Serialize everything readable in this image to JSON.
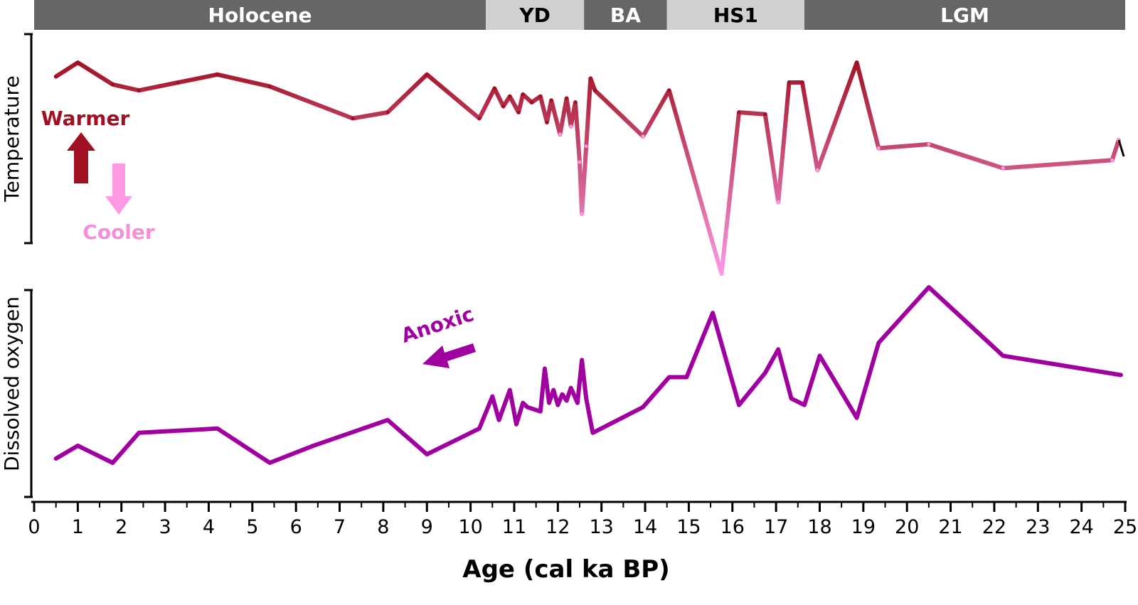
{
  "chart_data": {
    "type": "line",
    "xlabel": "Age (cal ka BP)",
    "xlim": [
      0,
      25
    ],
    "x_ticks": [
      "0",
      "1",
      "2",
      "3",
      "4",
      "5",
      "6",
      "7",
      "8",
      "9",
      "10",
      "11",
      "12",
      "13",
      "14",
      "15",
      "16",
      "17",
      "18",
      "19",
      "20",
      "21",
      "22",
      "23",
      "24",
      "25"
    ],
    "periods": [
      {
        "label": "Holocene",
        "start": 0.0,
        "end": 10.35,
        "fill": "#666666",
        "text_color": "#ffffff"
      },
      {
        "label": "YD",
        "start": 10.35,
        "end": 12.6,
        "fill": "#d0d0d0",
        "text_color": "#000000"
      },
      {
        "label": "BA",
        "start": 12.6,
        "end": 14.5,
        "fill": "#666666",
        "text_color": "#ffffff"
      },
      {
        "label": "HS1",
        "start": 14.5,
        "end": 17.65,
        "fill": "#d0d0d0",
        "text_color": "#000000"
      },
      {
        "label": "LGM",
        "start": 17.65,
        "end": 25.0,
        "fill": "#666666",
        "text_color": "#ffffff"
      }
    ],
    "panels": [
      {
        "ylabel": "Temperature",
        "color_warm": "#a01020",
        "color_cool": "#ff99e6",
        "annotations": [
          {
            "label": "Warmer",
            "color": "#a01020",
            "direction": "up"
          },
          {
            "label": "Cooler",
            "color": "#f58fd8",
            "direction": "down"
          }
        ],
        "series": [
          {
            "x": [
              0.5,
              1.0,
              1.8,
              2.4,
              3.3,
              4.2,
              5.4,
              7.3,
              8.1,
              9.0,
              10.2,
              10.55,
              10.75,
              10.9,
              11.1,
              11.2,
              11.4,
              11.6,
              11.75,
              11.85,
              12.05,
              12.2,
              12.3,
              12.4,
              12.5,
              12.55,
              12.65,
              12.75,
              12.85,
              13.95,
              14.55,
              15.75,
              16.15,
              16.75,
              17.05,
              17.3,
              17.6,
              17.95,
              18.85,
              19.35,
              20.5,
              22.2,
              24.7,
              24.85
            ],
            "y": [
              0.85,
              0.92,
              0.81,
              0.78,
              0.82,
              0.86,
              0.8,
              0.64,
              0.67,
              0.86,
              0.64,
              0.79,
              0.7,
              0.75,
              0.67,
              0.76,
              0.72,
              0.75,
              0.62,
              0.73,
              0.56,
              0.74,
              0.6,
              0.72,
              0.42,
              0.16,
              0.5,
              0.84,
              0.78,
              0.55,
              0.78,
              -0.14,
              0.67,
              0.66,
              0.22,
              0.82,
              0.82,
              0.38,
              0.92,
              0.49,
              0.51,
              0.39,
              0.43,
              0.53
            ]
          }
        ]
      },
      {
        "ylabel": "Dissolved oxygen",
        "color": "#a000a0",
        "annotations": [
          {
            "label": "Anoxic",
            "color": "#a000a0",
            "direction": "left"
          }
        ],
        "series": [
          {
            "x": [
              0.5,
              1.0,
              1.8,
              2.4,
              4.2,
              5.4,
              6.4,
              8.1,
              9.0,
              10.2,
              10.5,
              10.65,
              10.9,
              11.05,
              11.2,
              11.3,
              11.6,
              11.7,
              11.8,
              11.9,
              12.0,
              12.1,
              12.2,
              12.3,
              12.45,
              12.55,
              12.65,
              12.8,
              13.95,
              14.55,
              14.95,
              15.55,
              16.15,
              16.75,
              17.05,
              17.35,
              17.65,
              18.0,
              18.85,
              19.35,
              20.5,
              22.2,
              24.9
            ],
            "y": [
              0.2,
              0.26,
              0.18,
              0.32,
              0.34,
              0.18,
              0.26,
              0.38,
              0.22,
              0.34,
              0.49,
              0.38,
              0.52,
              0.36,
              0.46,
              0.44,
              0.42,
              0.62,
              0.46,
              0.52,
              0.45,
              0.5,
              0.47,
              0.53,
              0.46,
              0.66,
              0.48,
              0.32,
              0.44,
              0.58,
              0.58,
              0.88,
              0.45,
              0.6,
              0.71,
              0.48,
              0.45,
              0.68,
              0.39,
              0.74,
              1.0,
              0.68,
              0.59
            ]
          }
        ]
      }
    ]
  }
}
